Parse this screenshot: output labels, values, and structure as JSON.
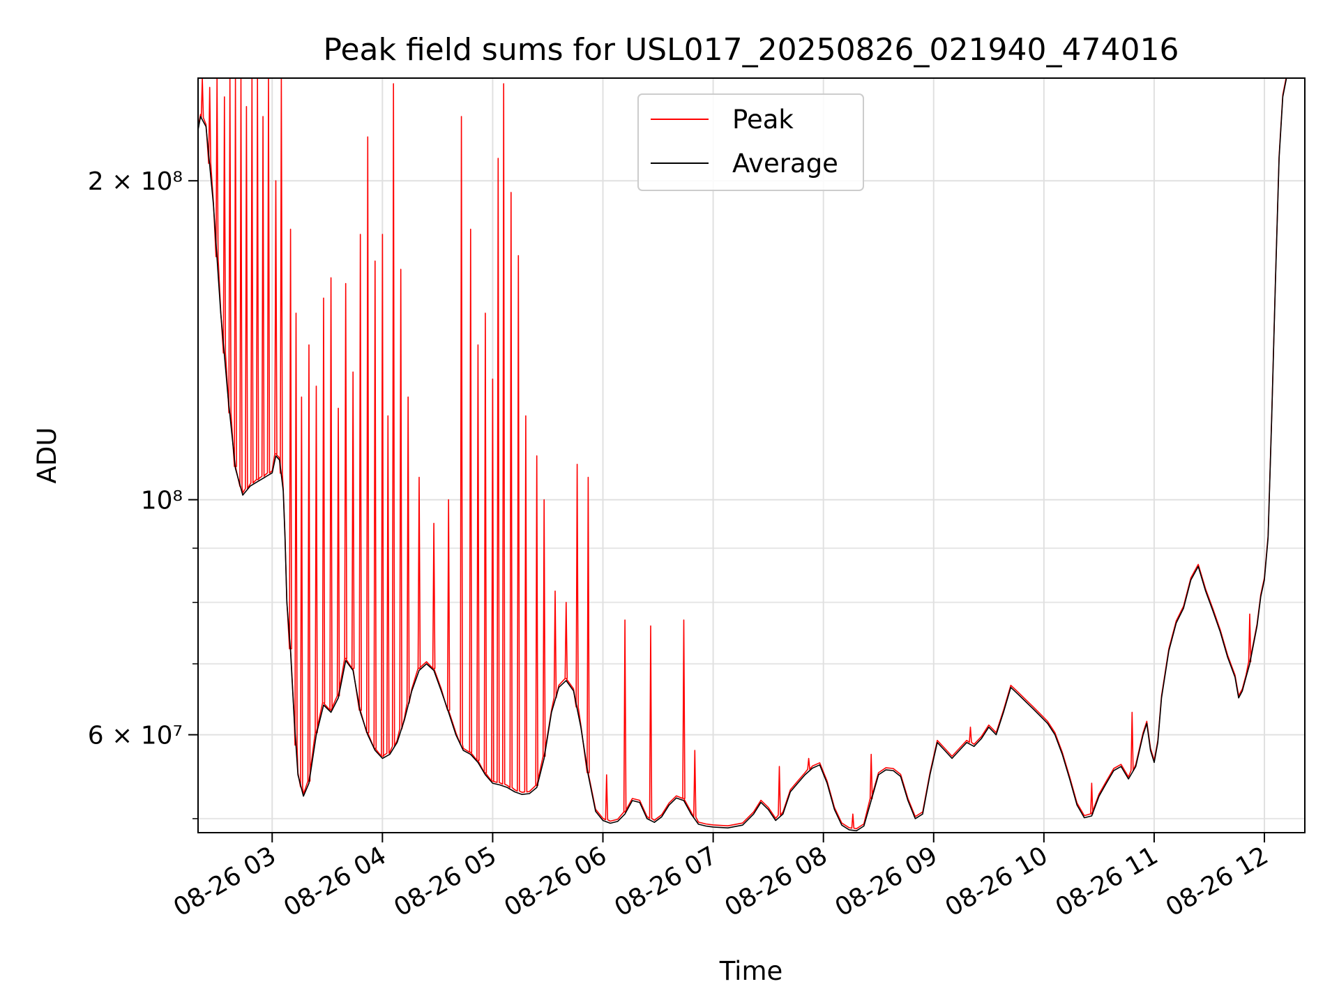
{
  "chart_data": {
    "type": "line",
    "title": "Peak field sums for USL017_20250826_021940_474016",
    "xlabel": "Time",
    "ylabel": "ADU",
    "yscale": "log",
    "xlim": [
      "2025-08-26T02:19:40",
      "2025-08-26T12:22:00"
    ],
    "ylim": [
      48500000,
      250000000
    ],
    "x_ticks": [
      {
        "value": "2025-08-26T03:00",
        "label": "08-26 03"
      },
      {
        "value": "2025-08-26T04:00",
        "label": "08-26 04"
      },
      {
        "value": "2025-08-26T05:00",
        "label": "08-26 05"
      },
      {
        "value": "2025-08-26T06:00",
        "label": "08-26 06"
      },
      {
        "value": "2025-08-26T07:00",
        "label": "08-26 07"
      },
      {
        "value": "2025-08-26T08:00",
        "label": "08-26 08"
      },
      {
        "value": "2025-08-26T09:00",
        "label": "08-26 09"
      },
      {
        "value": "2025-08-26T10:00",
        "label": "08-26 10"
      },
      {
        "value": "2025-08-26T11:00",
        "label": "08-26 11"
      },
      {
        "value": "2025-08-26T12:00",
        "label": "08-26 12"
      }
    ],
    "y_ticks_major": [
      {
        "value": 60000000,
        "label": "6 × 10⁷"
      },
      {
        "value": 100000000,
        "label": "10⁸"
      },
      {
        "value": 200000000,
        "label": "2 × 10⁸"
      }
    ],
    "y_ticks_minor": [
      50000000,
      70000000,
      80000000,
      90000000
    ],
    "grid": true,
    "legend_position": "upper-center",
    "series": [
      {
        "name": "Peak",
        "color": "#ff0000",
        "spikes": [
          [
            "02:22",
            250000000
          ],
          [
            "02:26",
            245000000
          ],
          [
            "02:30",
            250000000
          ],
          [
            "02:34",
            240000000
          ],
          [
            "02:37",
            250000000
          ],
          [
            "02:40",
            250000000
          ],
          [
            "02:43",
            250000000
          ],
          [
            "02:46",
            235000000
          ],
          [
            "02:49",
            250000000
          ],
          [
            "02:52",
            250000000
          ],
          [
            "02:55",
            230000000
          ],
          [
            "02:58",
            250000000
          ],
          [
            "03:02",
            200000000
          ],
          [
            "03:05",
            250000000
          ],
          [
            "03:10",
            180000000
          ],
          [
            "03:13",
            150000000
          ],
          [
            "03:16",
            125000000
          ],
          [
            "03:20",
            140000000
          ],
          [
            "03:24",
            128000000
          ],
          [
            "03:28",
            155000000
          ],
          [
            "03:32",
            162000000
          ],
          [
            "03:36",
            122000000
          ],
          [
            "03:40",
            160000000
          ],
          [
            "03:44",
            132000000
          ],
          [
            "03:48",
            178000000
          ],
          [
            "03:52",
            220000000
          ],
          [
            "03:56",
            168000000
          ],
          [
            "04:00",
            178000000
          ],
          [
            "04:03",
            120000000
          ],
          [
            "04:06",
            247000000
          ],
          [
            "04:10",
            165000000
          ],
          [
            "04:14",
            125000000
          ],
          [
            "04:20",
            105000000
          ],
          [
            "04:28",
            95000000
          ],
          [
            "04:36",
            100000000
          ],
          [
            "04:43",
            230000000
          ],
          [
            "04:48",
            180000000
          ],
          [
            "04:52",
            140000000
          ],
          [
            "04:56",
            150000000
          ],
          [
            "05:00",
            130000000
          ],
          [
            "05:03",
            210000000
          ],
          [
            "05:06",
            247000000
          ],
          [
            "05:10",
            195000000
          ],
          [
            "05:14",
            170000000
          ],
          [
            "05:18",
            120000000
          ],
          [
            "05:24",
            110000000
          ],
          [
            "05:28",
            100000000
          ],
          [
            "05:34",
            82000000
          ],
          [
            "05:40",
            80000000
          ],
          [
            "05:46",
            108000000
          ],
          [
            "05:52",
            105000000
          ],
          [
            "06:02",
            55000000
          ],
          [
            "06:12",
            77000000
          ],
          [
            "06:26",
            76000000
          ],
          [
            "06:44",
            77000000
          ],
          [
            "06:50",
            58000000
          ],
          [
            "07:36",
            56000000
          ],
          [
            "07:52",
            57000000
          ],
          [
            "08:16",
            50500000
          ],
          [
            "08:26",
            57500000
          ],
          [
            "09:20",
            61000000
          ],
          [
            "10:26",
            54000000
          ],
          [
            "10:48",
            63000000
          ],
          [
            "11:52",
            78000000
          ]
        ]
      },
      {
        "name": "Average",
        "color": "#000000",
        "points": [
          [
            "02:19",
            220000000
          ],
          [
            "02:21",
            230000000
          ],
          [
            "02:24",
            225000000
          ],
          [
            "02:28",
            190000000
          ],
          [
            "02:32",
            150000000
          ],
          [
            "02:36",
            125000000
          ],
          [
            "02:40",
            107000000
          ],
          [
            "02:44",
            101000000
          ],
          [
            "02:48",
            103000000
          ],
          [
            "02:52",
            104000000
          ],
          [
            "02:56",
            105000000
          ],
          [
            "03:00",
            106000000
          ],
          [
            "03:02",
            110000000
          ],
          [
            "03:04",
            109000000
          ],
          [
            "03:06",
            102000000
          ],
          [
            "03:07",
            92000000
          ],
          [
            "03:08",
            80000000
          ],
          [
            "03:10",
            72000000
          ],
          [
            "03:12",
            62000000
          ],
          [
            "03:14",
            55000000
          ],
          [
            "03:17",
            52500000
          ],
          [
            "03:20",
            54000000
          ],
          [
            "03:24",
            60000000
          ],
          [
            "03:28",
            64000000
          ],
          [
            "03:32",
            63000000
          ],
          [
            "03:36",
            65000000
          ],
          [
            "03:40",
            70500000
          ],
          [
            "03:44",
            69000000
          ],
          [
            "03:48",
            63000000
          ],
          [
            "03:52",
            60000000
          ],
          [
            "03:56",
            58000000
          ],
          [
            "04:00",
            57000000
          ],
          [
            "04:04",
            57500000
          ],
          [
            "04:08",
            59000000
          ],
          [
            "04:12",
            62000000
          ],
          [
            "04:16",
            66000000
          ],
          [
            "04:20",
            69000000
          ],
          [
            "04:24",
            70000000
          ],
          [
            "04:28",
            69000000
          ],
          [
            "04:32",
            66000000
          ],
          [
            "04:36",
            63000000
          ],
          [
            "04:40",
            60000000
          ],
          [
            "04:44",
            58000000
          ],
          [
            "04:48",
            57500000
          ],
          [
            "04:52",
            56500000
          ],
          [
            "04:56",
            55000000
          ],
          [
            "05:00",
            54000000
          ],
          [
            "05:04",
            53800000
          ],
          [
            "05:08",
            53500000
          ],
          [
            "05:12",
            53000000
          ],
          [
            "05:16",
            52700000
          ],
          [
            "05:20",
            52800000
          ],
          [
            "05:24",
            53500000
          ],
          [
            "05:28",
            57000000
          ],
          [
            "05:32",
            63000000
          ],
          [
            "05:36",
            66500000
          ],
          [
            "05:40",
            67500000
          ],
          [
            "05:44",
            66000000
          ],
          [
            "05:48",
            61000000
          ],
          [
            "05:52",
            55000000
          ],
          [
            "05:56",
            50800000
          ],
          [
            "06:00",
            49800000
          ],
          [
            "06:04",
            49500000
          ],
          [
            "06:08",
            49700000
          ],
          [
            "06:12",
            50500000
          ],
          [
            "06:16",
            52000000
          ],
          [
            "06:20",
            51800000
          ],
          [
            "06:24",
            50000000
          ],
          [
            "06:28",
            49600000
          ],
          [
            "06:32",
            50200000
          ],
          [
            "06:36",
            51500000
          ],
          [
            "06:40",
            52300000
          ],
          [
            "06:44",
            52000000
          ],
          [
            "06:48",
            50500000
          ],
          [
            "06:52",
            49400000
          ],
          [
            "06:56",
            49200000
          ],
          [
            "07:00",
            49100000
          ],
          [
            "07:08",
            49000000
          ],
          [
            "07:16",
            49300000
          ],
          [
            "07:22",
            50500000
          ],
          [
            "07:26",
            51800000
          ],
          [
            "07:30",
            51000000
          ],
          [
            "07:34",
            49800000
          ],
          [
            "07:38",
            50500000
          ],
          [
            "07:42",
            53000000
          ],
          [
            "07:46",
            54000000
          ],
          [
            "07:50",
            55000000
          ],
          [
            "07:54",
            55800000
          ],
          [
            "07:58",
            56200000
          ],
          [
            "08:02",
            54000000
          ],
          [
            "08:06",
            51000000
          ],
          [
            "08:10",
            49300000
          ],
          [
            "08:14",
            48800000
          ],
          [
            "08:18",
            48700000
          ],
          [
            "08:22",
            49200000
          ],
          [
            "08:26",
            52000000
          ],
          [
            "08:30",
            55000000
          ],
          [
            "08:34",
            55600000
          ],
          [
            "08:38",
            55500000
          ],
          [
            "08:42",
            54800000
          ],
          [
            "08:46",
            52000000
          ],
          [
            "08:50",
            50000000
          ],
          [
            "08:54",
            50500000
          ],
          [
            "08:58",
            55000000
          ],
          [
            "09:02",
            59000000
          ],
          [
            "09:06",
            58000000
          ],
          [
            "09:10",
            57000000
          ],
          [
            "09:14",
            58000000
          ],
          [
            "09:18",
            59000000
          ],
          [
            "09:22",
            58500000
          ],
          [
            "09:26",
            59500000
          ],
          [
            "09:30",
            61000000
          ],
          [
            "09:34",
            60000000
          ],
          [
            "09:38",
            63000000
          ],
          [
            "09:42",
            66500000
          ],
          [
            "09:46",
            65500000
          ],
          [
            "09:50",
            64500000
          ],
          [
            "09:54",
            63500000
          ],
          [
            "09:58",
            62500000
          ],
          [
            "10:02",
            61500000
          ],
          [
            "10:06",
            60000000
          ],
          [
            "10:10",
            57500000
          ],
          [
            "10:14",
            54500000
          ],
          [
            "10:18",
            51500000
          ],
          [
            "10:22",
            50100000
          ],
          [
            "10:26",
            50300000
          ],
          [
            "10:30",
            52500000
          ],
          [
            "10:34",
            54000000
          ],
          [
            "10:38",
            55500000
          ],
          [
            "10:42",
            56000000
          ],
          [
            "10:46",
            54500000
          ],
          [
            "10:50",
            56000000
          ],
          [
            "10:52",
            58000000
          ],
          [
            "10:54",
            60000000
          ],
          [
            "10:56",
            61500000
          ],
          [
            "10:58",
            58000000
          ],
          [
            "11:00",
            56500000
          ],
          [
            "11:02",
            59000000
          ],
          [
            "11:04",
            65000000
          ],
          [
            "11:08",
            72000000
          ],
          [
            "11:12",
            76500000
          ],
          [
            "11:16",
            79000000
          ],
          [
            "11:20",
            84000000
          ],
          [
            "11:24",
            86500000
          ],
          [
            "11:28",
            82000000
          ],
          [
            "11:32",
            78500000
          ],
          [
            "11:36",
            75000000
          ],
          [
            "11:40",
            71000000
          ],
          [
            "11:44",
            68000000
          ],
          [
            "11:46",
            65000000
          ],
          [
            "11:48",
            66000000
          ],
          [
            "11:50",
            68000000
          ],
          [
            "11:52",
            70000000
          ],
          [
            "11:56",
            76000000
          ],
          [
            "11:58",
            81000000
          ],
          [
            "12:00",
            84000000
          ],
          [
            "12:02",
            92000000
          ],
          [
            "12:04",
            120000000
          ],
          [
            "12:06",
            160000000
          ],
          [
            "12:08",
            210000000
          ],
          [
            "12:10",
            240000000
          ],
          [
            "12:12",
            250000000
          ]
        ]
      }
    ]
  }
}
